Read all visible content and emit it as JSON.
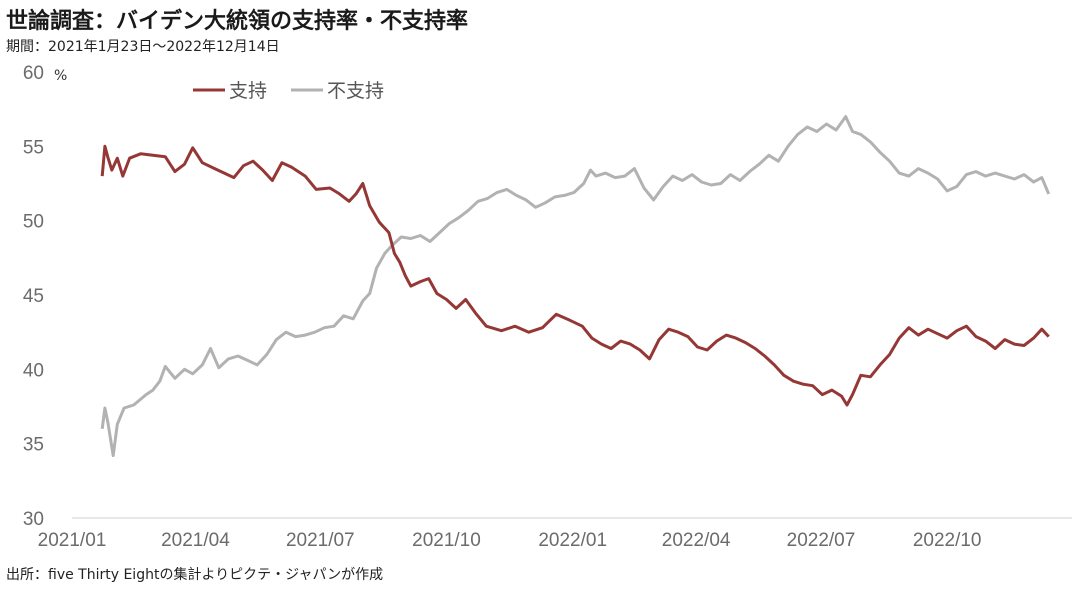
{
  "title": "世論調査：バイデン大統領の支持率・不支持率",
  "subtitle": "期間：2021年1月23日～2022年12月14日",
  "source": "出所：five Thirty Eightの集計よりピクテ・ジャパンが作成",
  "chart_data": {
    "type": "line",
    "ylabel_unit": "%",
    "ylim": [
      30,
      60
    ],
    "yticks": [
      30,
      35,
      40,
      45,
      50,
      55,
      60
    ],
    "xlim": [
      "2021-01-01",
      "2022-12-31"
    ],
    "xticks": [
      "2021-01-01",
      "2021-04-01",
      "2021-07-01",
      "2021-10-01",
      "2022-01-01",
      "2022-04-01",
      "2022-07-01",
      "2022-10-01"
    ],
    "xtick_labels": [
      "2021/01",
      "2021/04",
      "2021/07",
      "2021/10",
      "2022/01",
      "2022/04",
      "2022/07",
      "2022/10"
    ],
    "grid": false,
    "legend_position": "top",
    "series": [
      {
        "name": "支持",
        "color": "#953735",
        "points": [
          [
            "2021-01-23",
            53.0
          ],
          [
            "2021-01-25",
            55.0
          ],
          [
            "2021-01-27",
            54.3
          ],
          [
            "2021-01-30",
            53.4
          ],
          [
            "2021-02-03",
            54.2
          ],
          [
            "2021-02-07",
            53.0
          ],
          [
            "2021-02-12",
            54.2
          ],
          [
            "2021-02-20",
            54.5
          ],
          [
            "2021-03-01",
            54.4
          ],
          [
            "2021-03-10",
            54.3
          ],
          [
            "2021-03-17",
            53.3
          ],
          [
            "2021-03-24",
            53.8
          ],
          [
            "2021-03-30",
            54.9
          ],
          [
            "2021-04-06",
            53.9
          ],
          [
            "2021-04-15",
            53.5
          ],
          [
            "2021-04-22",
            53.2
          ],
          [
            "2021-04-29",
            52.9
          ],
          [
            "2021-05-06",
            53.7
          ],
          [
            "2021-05-13",
            54.0
          ],
          [
            "2021-05-20",
            53.4
          ],
          [
            "2021-05-27",
            52.7
          ],
          [
            "2021-06-03",
            53.9
          ],
          [
            "2021-06-10",
            53.6
          ],
          [
            "2021-06-20",
            53.0
          ],
          [
            "2021-06-28",
            52.1
          ],
          [
            "2021-07-08",
            52.2
          ],
          [
            "2021-07-15",
            51.8
          ],
          [
            "2021-07-22",
            51.3
          ],
          [
            "2021-07-27",
            51.8
          ],
          [
            "2021-08-01",
            52.5
          ],
          [
            "2021-08-06",
            51.0
          ],
          [
            "2021-08-13",
            49.9
          ],
          [
            "2021-08-20",
            49.2
          ],
          [
            "2021-08-24",
            47.8
          ],
          [
            "2021-08-28",
            47.2
          ],
          [
            "2021-09-01",
            46.3
          ],
          [
            "2021-09-05",
            45.6
          ],
          [
            "2021-09-12",
            45.9
          ],
          [
            "2021-09-18",
            46.1
          ],
          [
            "2021-09-24",
            45.1
          ],
          [
            "2021-10-01",
            44.7
          ],
          [
            "2021-10-08",
            44.1
          ],
          [
            "2021-10-15",
            44.7
          ],
          [
            "2021-10-22",
            43.8
          ],
          [
            "2021-10-30",
            42.9
          ],
          [
            "2021-11-10",
            42.6
          ],
          [
            "2021-11-20",
            42.9
          ],
          [
            "2021-11-30",
            42.5
          ],
          [
            "2021-12-10",
            42.8
          ],
          [
            "2021-12-20",
            43.7
          ],
          [
            "2021-12-30",
            43.3
          ],
          [
            "2022-01-08",
            42.9
          ],
          [
            "2022-01-15",
            42.1
          ],
          [
            "2022-01-22",
            41.7
          ],
          [
            "2022-01-29",
            41.4
          ],
          [
            "2022-02-05",
            41.9
          ],
          [
            "2022-02-12",
            41.7
          ],
          [
            "2022-02-19",
            41.3
          ],
          [
            "2022-02-26",
            40.7
          ],
          [
            "2022-03-05",
            42.0
          ],
          [
            "2022-03-12",
            42.7
          ],
          [
            "2022-03-19",
            42.5
          ],
          [
            "2022-03-26",
            42.2
          ],
          [
            "2022-04-02",
            41.5
          ],
          [
            "2022-04-09",
            41.3
          ],
          [
            "2022-04-16",
            41.9
          ],
          [
            "2022-04-23",
            42.3
          ],
          [
            "2022-04-30",
            42.1
          ],
          [
            "2022-05-07",
            41.8
          ],
          [
            "2022-05-14",
            41.4
          ],
          [
            "2022-05-21",
            40.9
          ],
          [
            "2022-05-28",
            40.3
          ],
          [
            "2022-06-04",
            39.6
          ],
          [
            "2022-06-11",
            39.2
          ],
          [
            "2022-06-18",
            39.0
          ],
          [
            "2022-06-25",
            38.9
          ],
          [
            "2022-07-02",
            38.3
          ],
          [
            "2022-07-09",
            38.6
          ],
          [
            "2022-07-16",
            38.2
          ],
          [
            "2022-07-20",
            37.6
          ],
          [
            "2022-07-24",
            38.3
          ],
          [
            "2022-07-30",
            39.6
          ],
          [
            "2022-08-06",
            39.5
          ],
          [
            "2022-08-13",
            40.3
          ],
          [
            "2022-08-20",
            41.0
          ],
          [
            "2022-08-27",
            42.1
          ],
          [
            "2022-09-03",
            42.8
          ],
          [
            "2022-09-10",
            42.3
          ],
          [
            "2022-09-17",
            42.7
          ],
          [
            "2022-09-24",
            42.4
          ],
          [
            "2022-10-01",
            42.1
          ],
          [
            "2022-10-08",
            42.6
          ],
          [
            "2022-10-15",
            42.9
          ],
          [
            "2022-10-22",
            42.2
          ],
          [
            "2022-10-29",
            41.9
          ],
          [
            "2022-11-05",
            41.4
          ],
          [
            "2022-11-12",
            42.0
          ],
          [
            "2022-11-19",
            41.7
          ],
          [
            "2022-11-26",
            41.6
          ],
          [
            "2022-12-03",
            42.1
          ],
          [
            "2022-12-09",
            42.7
          ],
          [
            "2022-12-14",
            42.2
          ]
        ]
      },
      {
        "name": "不支持",
        "color": "#b2b2b2",
        "points": [
          [
            "2021-01-23",
            36.0
          ],
          [
            "2021-01-25",
            37.4
          ],
          [
            "2021-01-27",
            36.5
          ],
          [
            "2021-01-31",
            34.2
          ],
          [
            "2021-02-03",
            36.3
          ],
          [
            "2021-02-08",
            37.4
          ],
          [
            "2021-02-15",
            37.6
          ],
          [
            "2021-02-24",
            38.3
          ],
          [
            "2021-03-01",
            38.6
          ],
          [
            "2021-03-06",
            39.2
          ],
          [
            "2021-03-10",
            40.2
          ],
          [
            "2021-03-17",
            39.4
          ],
          [
            "2021-03-24",
            40.0
          ],
          [
            "2021-03-30",
            39.7
          ],
          [
            "2021-04-06",
            40.3
          ],
          [
            "2021-04-12",
            41.4
          ],
          [
            "2021-04-18",
            40.1
          ],
          [
            "2021-04-25",
            40.7
          ],
          [
            "2021-05-02",
            40.9
          ],
          [
            "2021-05-09",
            40.6
          ],
          [
            "2021-05-16",
            40.3
          ],
          [
            "2021-05-23",
            41.0
          ],
          [
            "2021-05-30",
            42.0
          ],
          [
            "2021-06-06",
            42.5
          ],
          [
            "2021-06-13",
            42.2
          ],
          [
            "2021-06-20",
            42.3
          ],
          [
            "2021-06-27",
            42.5
          ],
          [
            "2021-07-04",
            42.8
          ],
          [
            "2021-07-11",
            42.9
          ],
          [
            "2021-07-18",
            43.6
          ],
          [
            "2021-07-25",
            43.4
          ],
          [
            "2021-08-01",
            44.6
          ],
          [
            "2021-08-06",
            45.1
          ],
          [
            "2021-08-11",
            46.8
          ],
          [
            "2021-08-17",
            47.8
          ],
          [
            "2021-08-22",
            48.3
          ],
          [
            "2021-08-29",
            48.9
          ],
          [
            "2021-09-05",
            48.8
          ],
          [
            "2021-09-12",
            49.0
          ],
          [
            "2021-09-19",
            48.6
          ],
          [
            "2021-09-26",
            49.2
          ],
          [
            "2021-10-03",
            49.8
          ],
          [
            "2021-10-10",
            50.2
          ],
          [
            "2021-10-17",
            50.7
          ],
          [
            "2021-10-24",
            51.3
          ],
          [
            "2021-10-31",
            51.5
          ],
          [
            "2021-11-07",
            51.9
          ],
          [
            "2021-11-14",
            52.1
          ],
          [
            "2021-11-21",
            51.7
          ],
          [
            "2021-11-28",
            51.4
          ],
          [
            "2021-12-05",
            50.9
          ],
          [
            "2021-12-12",
            51.2
          ],
          [
            "2021-12-19",
            51.6
          ],
          [
            "2021-12-26",
            51.7
          ],
          [
            "2022-01-02",
            51.9
          ],
          [
            "2022-01-09",
            52.5
          ],
          [
            "2022-01-14",
            53.4
          ],
          [
            "2022-01-18",
            53.0
          ],
          [
            "2022-01-25",
            53.2
          ],
          [
            "2022-02-01",
            52.9
          ],
          [
            "2022-02-08",
            53.0
          ],
          [
            "2022-02-15",
            53.5
          ],
          [
            "2022-02-22",
            52.2
          ],
          [
            "2022-03-01",
            51.4
          ],
          [
            "2022-03-08",
            52.3
          ],
          [
            "2022-03-15",
            53.0
          ],
          [
            "2022-03-22",
            52.7
          ],
          [
            "2022-03-29",
            53.1
          ],
          [
            "2022-04-05",
            52.6
          ],
          [
            "2022-04-12",
            52.4
          ],
          [
            "2022-04-19",
            52.5
          ],
          [
            "2022-04-26",
            53.1
          ],
          [
            "2022-05-03",
            52.7
          ],
          [
            "2022-05-10",
            53.3
          ],
          [
            "2022-05-17",
            53.8
          ],
          [
            "2022-05-24",
            54.4
          ],
          [
            "2022-05-31",
            54.0
          ],
          [
            "2022-06-07",
            55.0
          ],
          [
            "2022-06-14",
            55.8
          ],
          [
            "2022-06-21",
            56.3
          ],
          [
            "2022-06-28",
            56.0
          ],
          [
            "2022-07-05",
            56.5
          ],
          [
            "2022-07-12",
            56.1
          ],
          [
            "2022-07-19",
            57.0
          ],
          [
            "2022-07-24",
            56.0
          ],
          [
            "2022-07-30",
            55.8
          ],
          [
            "2022-08-06",
            55.3
          ],
          [
            "2022-08-13",
            54.6
          ],
          [
            "2022-08-20",
            54.0
          ],
          [
            "2022-08-27",
            53.2
          ],
          [
            "2022-09-03",
            53.0
          ],
          [
            "2022-09-10",
            53.5
          ],
          [
            "2022-09-17",
            53.2
          ],
          [
            "2022-09-24",
            52.8
          ],
          [
            "2022-10-01",
            52.0
          ],
          [
            "2022-10-08",
            52.3
          ],
          [
            "2022-10-15",
            53.1
          ],
          [
            "2022-10-22",
            53.3
          ],
          [
            "2022-10-29",
            53.0
          ],
          [
            "2022-11-05",
            53.2
          ],
          [
            "2022-11-12",
            53.0
          ],
          [
            "2022-11-19",
            52.8
          ],
          [
            "2022-11-26",
            53.1
          ],
          [
            "2022-12-03",
            52.6
          ],
          [
            "2022-12-09",
            52.9
          ],
          [
            "2022-12-14",
            51.8
          ]
        ]
      }
    ]
  }
}
